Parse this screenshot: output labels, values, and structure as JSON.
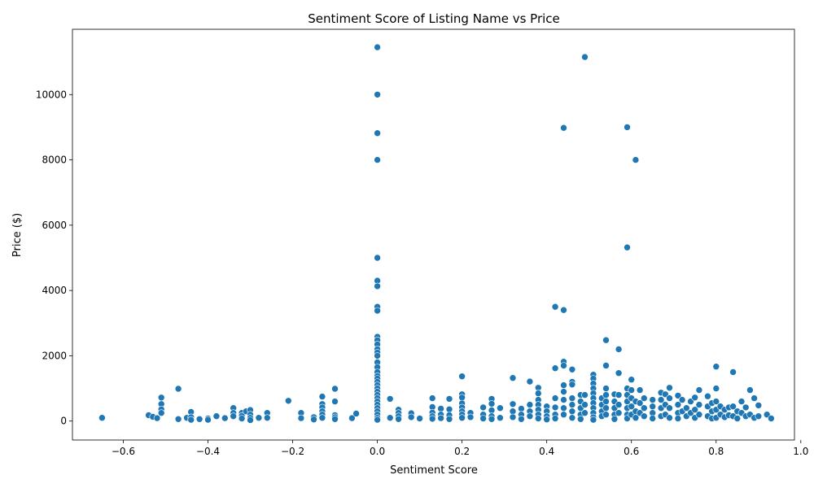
{
  "chart_data": {
    "type": "scatter",
    "title": "Sentiment Score of Listing Name vs Price",
    "xlabel": "Sentiment Score",
    "ylabel": "Price ($)",
    "xlim": [
      -0.72,
      0.985
    ],
    "ylim": [
      -580,
      12000
    ],
    "grid": false,
    "legend": "none",
    "marker_color": "#1f77b4",
    "x_ticks": [
      {
        "value": -0.6,
        "label": "−0.6"
      },
      {
        "value": -0.4,
        "label": "−0.4"
      },
      {
        "value": -0.2,
        "label": "−0.2"
      },
      {
        "value": 0.0,
        "label": "0.0"
      },
      {
        "value": 0.2,
        "label": "0.2"
      },
      {
        "value": 0.4,
        "label": "0.4"
      },
      {
        "value": 0.6,
        "label": "0.6"
      },
      {
        "value": 0.8,
        "label": "0.8"
      },
      {
        "value": 1.0,
        "label": "1.0"
      }
    ],
    "y_ticks": [
      {
        "value": 0,
        "label": "0"
      },
      {
        "value": 2000,
        "label": "2000"
      },
      {
        "value": 4000,
        "label": "4000"
      },
      {
        "value": 6000,
        "label": "6000"
      },
      {
        "value": 8000,
        "label": "8000"
      },
      {
        "value": 10000,
        "label": "10000"
      }
    ],
    "points": [
      [
        -0.65,
        100
      ],
      [
        -0.54,
        180
      ],
      [
        -0.53,
        130
      ],
      [
        -0.52,
        90
      ],
      [
        -0.51,
        720
      ],
      [
        -0.51,
        520
      ],
      [
        -0.51,
        360
      ],
      [
        -0.51,
        250
      ],
      [
        -0.47,
        990
      ],
      [
        -0.47,
        60
      ],
      [
        -0.45,
        100
      ],
      [
        -0.44,
        280
      ],
      [
        -0.44,
        120
      ],
      [
        -0.44,
        40
      ],
      [
        -0.42,
        60
      ],
      [
        -0.4,
        80
      ],
      [
        -0.4,
        40
      ],
      [
        -0.38,
        150
      ],
      [
        -0.36,
        90
      ],
      [
        -0.34,
        400
      ],
      [
        -0.34,
        250
      ],
      [
        -0.34,
        150
      ],
      [
        -0.32,
        250
      ],
      [
        -0.32,
        160
      ],
      [
        -0.32,
        80
      ],
      [
        -0.31,
        300
      ],
      [
        -0.3,
        340
      ],
      [
        -0.3,
        200
      ],
      [
        -0.3,
        100
      ],
      [
        -0.3,
        30
      ],
      [
        -0.28,
        100
      ],
      [
        -0.26,
        250
      ],
      [
        -0.26,
        100
      ],
      [
        -0.21,
        620
      ],
      [
        -0.18,
        250
      ],
      [
        -0.18,
        90
      ],
      [
        -0.15,
        120
      ],
      [
        -0.15,
        50
      ],
      [
        -0.13,
        750
      ],
      [
        -0.13,
        520
      ],
      [
        -0.13,
        420
      ],
      [
        -0.13,
        300
      ],
      [
        -0.13,
        200
      ],
      [
        -0.13,
        100
      ],
      [
        -0.1,
        990
      ],
      [
        -0.1,
        600
      ],
      [
        -0.1,
        180
      ],
      [
        -0.1,
        120
      ],
      [
        -0.1,
        60
      ],
      [
        -0.06,
        90
      ],
      [
        -0.05,
        230
      ],
      [
        0.0,
        11450
      ],
      [
        0.0,
        10000
      ],
      [
        0.0,
        8820
      ],
      [
        0.0,
        8000
      ],
      [
        0.0,
        5000
      ],
      [
        0.0,
        4300
      ],
      [
        0.0,
        4130
      ],
      [
        0.0,
        3500
      ],
      [
        0.0,
        3380
      ],
      [
        0.0,
        2580
      ],
      [
        0.0,
        2480
      ],
      [
        0.0,
        2350
      ],
      [
        0.0,
        2200
      ],
      [
        0.0,
        2100
      ],
      [
        0.0,
        2000
      ],
      [
        0.0,
        1800
      ],
      [
        0.0,
        1650
      ],
      [
        0.0,
        1500
      ],
      [
        0.0,
        1380
      ],
      [
        0.0,
        1300
      ],
      [
        0.0,
        1200
      ],
      [
        0.0,
        1100
      ],
      [
        0.0,
        1000
      ],
      [
        0.0,
        900
      ],
      [
        0.0,
        800
      ],
      [
        0.0,
        700
      ],
      [
        0.0,
        600
      ],
      [
        0.0,
        500
      ],
      [
        0.0,
        400
      ],
      [
        0.0,
        300
      ],
      [
        0.0,
        200
      ],
      [
        0.0,
        100
      ],
      [
        0.0,
        40
      ],
      [
        0.03,
        680
      ],
      [
        0.03,
        100
      ],
      [
        0.05,
        350
      ],
      [
        0.05,
        250
      ],
      [
        0.05,
        150
      ],
      [
        0.05,
        60
      ],
      [
        0.08,
        240
      ],
      [
        0.08,
        120
      ],
      [
        0.1,
        80
      ],
      [
        0.13,
        700
      ],
      [
        0.13,
        430
      ],
      [
        0.13,
        260
      ],
      [
        0.13,
        150
      ],
      [
        0.13,
        70
      ],
      [
        0.15,
        380
      ],
      [
        0.15,
        200
      ],
      [
        0.15,
        90
      ],
      [
        0.17,
        680
      ],
      [
        0.17,
        360
      ],
      [
        0.17,
        180
      ],
      [
        0.17,
        60
      ],
      [
        0.2,
        1370
      ],
      [
        0.2,
        820
      ],
      [
        0.2,
        720
      ],
      [
        0.2,
        540
      ],
      [
        0.2,
        420
      ],
      [
        0.2,
        300
      ],
      [
        0.2,
        200
      ],
      [
        0.2,
        100
      ],
      [
        0.22,
        250
      ],
      [
        0.22,
        120
      ],
      [
        0.25,
        420
      ],
      [
        0.25,
        200
      ],
      [
        0.25,
        80
      ],
      [
        0.27,
        680
      ],
      [
        0.27,
        530
      ],
      [
        0.27,
        330
      ],
      [
        0.27,
        150
      ],
      [
        0.27,
        60
      ],
      [
        0.29,
        400
      ],
      [
        0.29,
        100
      ],
      [
        0.32,
        1320
      ],
      [
        0.32,
        520
      ],
      [
        0.32,
        300
      ],
      [
        0.32,
        120
      ],
      [
        0.34,
        380
      ],
      [
        0.34,
        200
      ],
      [
        0.34,
        60
      ],
      [
        0.36,
        1210
      ],
      [
        0.36,
        500
      ],
      [
        0.36,
        300
      ],
      [
        0.36,
        150
      ],
      [
        0.38,
        1020
      ],
      [
        0.38,
        850
      ],
      [
        0.38,
        650
      ],
      [
        0.38,
        500
      ],
      [
        0.38,
        350
      ],
      [
        0.38,
        200
      ],
      [
        0.38,
        80
      ],
      [
        0.4,
        450
      ],
      [
        0.4,
        300
      ],
      [
        0.4,
        150
      ],
      [
        0.4,
        50
      ],
      [
        0.42,
        3500
      ],
      [
        0.42,
        1620
      ],
      [
        0.42,
        700
      ],
      [
        0.42,
        420
      ],
      [
        0.42,
        200
      ],
      [
        0.42,
        80
      ],
      [
        0.44,
        8980
      ],
      [
        0.44,
        3400
      ],
      [
        0.44,
        1820
      ],
      [
        0.44,
        1700
      ],
      [
        0.44,
        1100
      ],
      [
        0.44,
        900
      ],
      [
        0.44,
        650
      ],
      [
        0.44,
        400
      ],
      [
        0.44,
        200
      ],
      [
        0.46,
        1580
      ],
      [
        0.46,
        1200
      ],
      [
        0.46,
        1120
      ],
      [
        0.46,
        700
      ],
      [
        0.46,
        500
      ],
      [
        0.46,
        300
      ],
      [
        0.46,
        100
      ],
      [
        0.48,
        800
      ],
      [
        0.48,
        600
      ],
      [
        0.48,
        400
      ],
      [
        0.48,
        200
      ],
      [
        0.48,
        60
      ],
      [
        0.49,
        11150
      ],
      [
        0.49,
        800
      ],
      [
        0.49,
        500
      ],
      [
        0.49,
        250
      ],
      [
        0.51,
        1420
      ],
      [
        0.51,
        1300
      ],
      [
        0.51,
        1150
      ],
      [
        0.51,
        1000
      ],
      [
        0.51,
        850
      ],
      [
        0.51,
        700
      ],
      [
        0.51,
        550
      ],
      [
        0.51,
        400
      ],
      [
        0.51,
        250
      ],
      [
        0.51,
        120
      ],
      [
        0.51,
        40
      ],
      [
        0.53,
        700
      ],
      [
        0.53,
        500
      ],
      [
        0.53,
        300
      ],
      [
        0.53,
        150
      ],
      [
        0.54,
        2480
      ],
      [
        0.54,
        1700
      ],
      [
        0.54,
        1000
      ],
      [
        0.54,
        800
      ],
      [
        0.54,
        600
      ],
      [
        0.54,
        400
      ],
      [
        0.54,
        200
      ],
      [
        0.56,
        820
      ],
      [
        0.56,
        600
      ],
      [
        0.56,
        400
      ],
      [
        0.56,
        200
      ],
      [
        0.56,
        60
      ],
      [
        0.57,
        2200
      ],
      [
        0.57,
        1470
      ],
      [
        0.57,
        800
      ],
      [
        0.57,
        500
      ],
      [
        0.57,
        250
      ],
      [
        0.59,
        9000
      ],
      [
        0.59,
        5320
      ],
      [
        0.59,
        1000
      ],
      [
        0.59,
        800
      ],
      [
        0.59,
        600
      ],
      [
        0.59,
        400
      ],
      [
        0.59,
        200
      ],
      [
        0.59,
        80
      ],
      [
        0.6,
        1270
      ],
      [
        0.6,
        950
      ],
      [
        0.6,
        700
      ],
      [
        0.6,
        450
      ],
      [
        0.6,
        200
      ],
      [
        0.61,
        8000
      ],
      [
        0.61,
        600
      ],
      [
        0.61,
        300
      ],
      [
        0.61,
        100
      ],
      [
        0.62,
        950
      ],
      [
        0.62,
        550
      ],
      [
        0.62,
        250
      ],
      [
        0.63,
        700
      ],
      [
        0.63,
        400
      ],
      [
        0.63,
        150
      ],
      [
        0.65,
        650
      ],
      [
        0.65,
        450
      ],
      [
        0.65,
        250
      ],
      [
        0.65,
        80
      ],
      [
        0.67,
        870
      ],
      [
        0.67,
        650
      ],
      [
        0.67,
        400
      ],
      [
        0.67,
        150
      ],
      [
        0.68,
        820
      ],
      [
        0.68,
        500
      ],
      [
        0.68,
        200
      ],
      [
        0.69,
        1020
      ],
      [
        0.69,
        700
      ],
      [
        0.69,
        400
      ],
      [
        0.69,
        100
      ],
      [
        0.71,
        780
      ],
      [
        0.71,
        500
      ],
      [
        0.71,
        250
      ],
      [
        0.71,
        80
      ],
      [
        0.72,
        650
      ],
      [
        0.72,
        300
      ],
      [
        0.73,
        400
      ],
      [
        0.73,
        150
      ],
      [
        0.74,
        600
      ],
      [
        0.74,
        250
      ],
      [
        0.75,
        720
      ],
      [
        0.75,
        350
      ],
      [
        0.75,
        100
      ],
      [
        0.76,
        950
      ],
      [
        0.76,
        500
      ],
      [
        0.76,
        200
      ],
      [
        0.78,
        760
      ],
      [
        0.78,
        450
      ],
      [
        0.78,
        150
      ],
      [
        0.79,
        550
      ],
      [
        0.79,
        300
      ],
      [
        0.79,
        80
      ],
      [
        0.8,
        1670
      ],
      [
        0.8,
        1000
      ],
      [
        0.8,
        600
      ],
      [
        0.8,
        350
      ],
      [
        0.8,
        100
      ],
      [
        0.81,
        450
      ],
      [
        0.81,
        200
      ],
      [
        0.82,
        350
      ],
      [
        0.82,
        120
      ],
      [
        0.83,
        420
      ],
      [
        0.83,
        180
      ],
      [
        0.84,
        1500
      ],
      [
        0.84,
        450
      ],
      [
        0.84,
        150
      ],
      [
        0.85,
        300
      ],
      [
        0.85,
        80
      ],
      [
        0.86,
        600
      ],
      [
        0.86,
        250
      ],
      [
        0.87,
        420
      ],
      [
        0.87,
        150
      ],
      [
        0.88,
        950
      ],
      [
        0.88,
        200
      ],
      [
        0.89,
        700
      ],
      [
        0.89,
        100
      ],
      [
        0.9,
        480
      ],
      [
        0.9,
        150
      ],
      [
        0.92,
        200
      ],
      [
        0.93,
        80
      ]
    ]
  }
}
